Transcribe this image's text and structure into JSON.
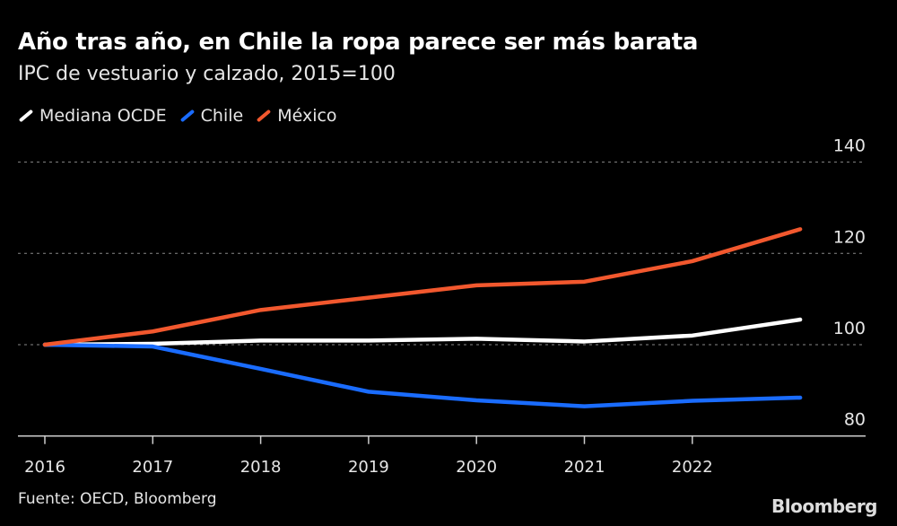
{
  "chart_data": {
    "type": "line",
    "title": "Año tras año, en Chile la ropa parece ser más barata",
    "subtitle": "IPC de vestuario y calzado, 2015=100",
    "x": [
      2016,
      2017,
      2018,
      2019,
      2020,
      2021,
      2022,
      2023
    ],
    "x_tick_labels": [
      "2016",
      "2017",
      "2018",
      "2019",
      "2020",
      "2021",
      "2022"
    ],
    "y_ticks": [
      80,
      100,
      120,
      140
    ],
    "ylim": [
      80,
      140
    ],
    "grid": true,
    "legend_position": "top-left",
    "series": [
      {
        "name": "Mediana OCDE",
        "color": "#ffffff",
        "values": [
          100,
          100.2,
          100.9,
          100.9,
          101.3,
          100.7,
          102,
          105.5
        ]
      },
      {
        "name": "Chile",
        "color": "#1a6cff",
        "values": [
          100,
          99.6,
          94.7,
          89.7,
          87.8,
          86.5,
          87.7,
          88.4
        ]
      },
      {
        "name": "México",
        "color": "#f2582e",
        "values": [
          100,
          102.9,
          107.6,
          110.3,
          113,
          113.8,
          118.3,
          125.3
        ]
      }
    ]
  },
  "source": "Fuente: OECD, Bloomberg",
  "logo": "Bloomberg"
}
